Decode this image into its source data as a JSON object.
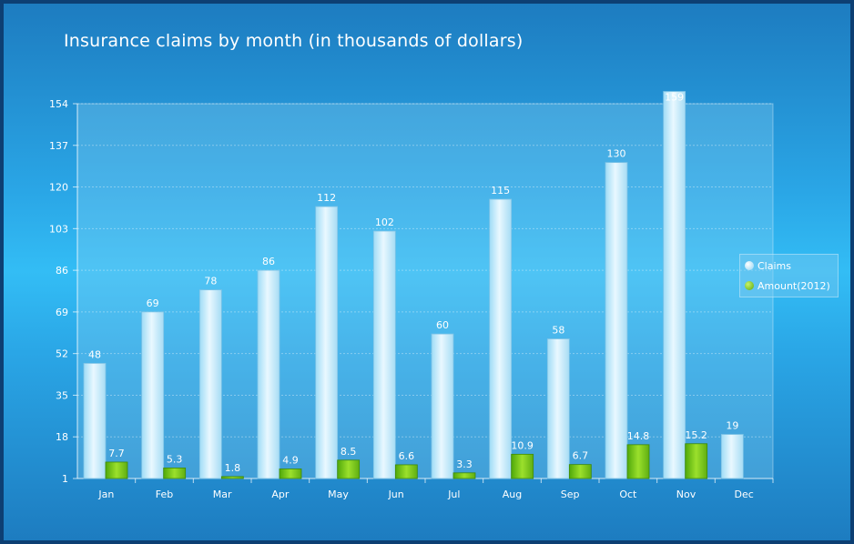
{
  "chart_data": {
    "type": "bar",
    "title": "Insurance claims by month (in thousands of dollars)",
    "categories": [
      "Jan",
      "Feb",
      "Mar",
      "Apr",
      "May",
      "Jun",
      "Jul",
      "Aug",
      "Sep",
      "Oct",
      "Nov",
      "Dec"
    ],
    "series": [
      {
        "name": "Claims",
        "values": [
          48,
          69,
          78,
          86,
          112,
          102,
          60,
          115,
          58,
          130,
          159,
          19
        ],
        "color": "#c8ecfb"
      },
      {
        "name": "Amount(2012)",
        "values": [
          7.7,
          5.3,
          1.8,
          4.9,
          8.5,
          6.6,
          3.3,
          10.9,
          6.7,
          14.8,
          15.2,
          null
        ],
        "color": "#7cc61a"
      }
    ],
    "yticks": [
      1,
      18,
      35,
      52,
      69,
      86,
      103,
      120,
      137,
      154
    ],
    "ylim": [
      1,
      154
    ],
    "grid": true,
    "legend_position": "right"
  }
}
